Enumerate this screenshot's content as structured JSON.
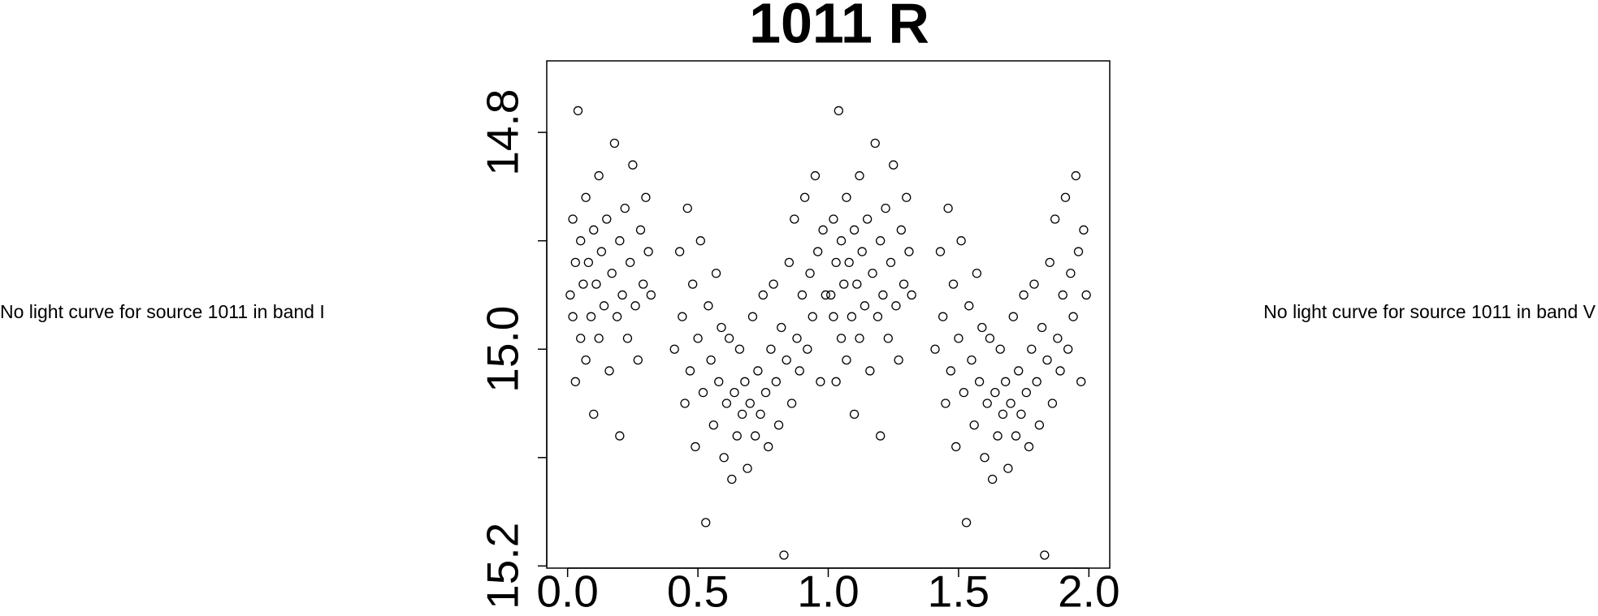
{
  "left_panel": {
    "message": "No light curve for source 1011 in band I"
  },
  "right_panel": {
    "message": "No light curve for source 1011 in band V"
  },
  "chart_data": {
    "type": "scatter",
    "title": "1011 R",
    "color": "#000000",
    "marker": "open-circle",
    "xlim": [
      -0.08,
      2.08
    ],
    "ylim": [
      15.202,
      14.734
    ],
    "xticks": [
      {
        "value": 0,
        "label": "0.0"
      },
      0.5,
      {
        "value": 1,
        "label": "1.0"
      },
      1.5,
      {
        "value": 2,
        "label": "2.0"
      }
    ],
    "yticks": [
      14.8,
      {
        "value": 14.9,
        "label": null
      },
      {
        "value": 15,
        "label": "15.0"
      },
      {
        "value": 15.1,
        "label": null
      },
      15.2
    ],
    "x": [
      0.01,
      0.02,
      0.02,
      0.03,
      0.03,
      0.04,
      0.05,
      0.05,
      0.06,
      0.07,
      0.07,
      0.08,
      0.09,
      0.1,
      0.1,
      0.11,
      0.12,
      0.12,
      0.13,
      0.14,
      0.15,
      0.16,
      0.17,
      0.18,
      0.19,
      0.2,
      0.2,
      0.21,
      0.22,
      0.23,
      0.24,
      0.25,
      0.26,
      0.27,
      0.28,
      0.29,
      0.3,
      0.31,
      0.32,
      0.41,
      0.43,
      0.44,
      0.45,
      0.46,
      0.47,
      0.48,
      0.49,
      0.5,
      0.51,
      0.52,
      0.53,
      0.54,
      0.55,
      0.56,
      0.57,
      0.58,
      0.59,
      0.6,
      0.61,
      0.62,
      0.63,
      0.64,
      0.65,
      0.66,
      0.67,
      0.68,
      0.69,
      0.7,
      0.71,
      0.72,
      0.73,
      0.74,
      0.75,
      0.76,
      0.77,
      0.78,
      0.79,
      0.8,
      0.81,
      0.82,
      0.83,
      0.84,
      0.85,
      0.86,
      0.87,
      0.88,
      0.89,
      0.9,
      0.91,
      0.92,
      0.93,
      0.94,
      0.95,
      0.96,
      0.97,
      0.98,
      0.99,
      1.01,
      1.02,
      1.02,
      1.03,
      1.03,
      1.04,
      1.05,
      1.05,
      1.06,
      1.07,
      1.07,
      1.08,
      1.09,
      1.1,
      1.1,
      1.11,
      1.12,
      1.12,
      1.13,
      1.14,
      1.15,
      1.16,
      1.17,
      1.18,
      1.19,
      1.2,
      1.2,
      1.21,
      1.22,
      1.23,
      1.24,
      1.25,
      1.26,
      1.27,
      1.28,
      1.29,
      1.3,
      1.31,
      1.32,
      1.41,
      1.43,
      1.44,
      1.45,
      1.46,
      1.47,
      1.48,
      1.49,
      1.5,
      1.51,
      1.52,
      1.53,
      1.54,
      1.55,
      1.56,
      1.57,
      1.58,
      1.59,
      1.6,
      1.61,
      1.62,
      1.63,
      1.64,
      1.65,
      1.66,
      1.67,
      1.68,
      1.69,
      1.7,
      1.71,
      1.72,
      1.73,
      1.74,
      1.75,
      1.76,
      1.77,
      1.78,
      1.79,
      1.8,
      1.81,
      1.82,
      1.83,
      1.84,
      1.85,
      1.86,
      1.87,
      1.88,
      1.89,
      1.9,
      1.91,
      1.92,
      1.93,
      1.94,
      1.95,
      1.96,
      1.97,
      1.98,
      1.99
    ],
    "values": [
      14.95,
      14.88,
      14.97,
      14.92,
      15.03,
      14.78,
      14.9,
      14.99,
      14.94,
      14.86,
      15.01,
      14.92,
      14.97,
      14.89,
      15.06,
      14.94,
      14.84,
      14.99,
      14.91,
      14.96,
      14.88,
      15.02,
      14.93,
      14.81,
      14.97,
      14.9,
      15.08,
      14.95,
      14.87,
      14.99,
      14.92,
      14.83,
      14.96,
      15.01,
      14.89,
      14.94,
      14.86,
      14.91,
      14.95,
      15.0,
      14.91,
      14.97,
      15.05,
      14.87,
      15.02,
      14.94,
      15.09,
      14.99,
      14.9,
      15.04,
      15.16,
      14.96,
      15.01,
      15.07,
      14.93,
      15.03,
      14.98,
      15.1,
      15.05,
      14.99,
      15.12,
      15.04,
      15.08,
      15.0,
      15.06,
      15.03,
      15.11,
      15.05,
      14.97,
      15.08,
      15.02,
      15.06,
      14.95,
      15.04,
      15.09,
      15.0,
      14.94,
      15.03,
      15.07,
      14.98,
      15.19,
      15.01,
      14.92,
      15.05,
      14.88,
      14.99,
      15.02,
      14.95,
      14.86,
      15.0,
      14.93,
      14.97,
      14.84,
      14.91,
      15.03,
      14.89,
      14.95,
      14.95,
      14.88,
      14.97,
      14.92,
      15.03,
      14.78,
      14.9,
      14.99,
      14.94,
      14.86,
      15.01,
      14.92,
      14.97,
      14.89,
      15.06,
      14.94,
      14.84,
      14.99,
      14.91,
      14.96,
      14.88,
      15.02,
      14.93,
      14.81,
      14.97,
      14.9,
      15.08,
      14.95,
      14.87,
      14.99,
      14.92,
      14.83,
      14.96,
      15.01,
      14.89,
      14.94,
      14.86,
      14.91,
      14.95,
      15.0,
      14.91,
      14.97,
      15.05,
      14.87,
      15.02,
      14.94,
      15.09,
      14.99,
      14.9,
      15.04,
      15.16,
      14.96,
      15.01,
      15.07,
      14.93,
      15.03,
      14.98,
      15.1,
      15.05,
      14.99,
      15.12,
      15.04,
      15.08,
      15.0,
      15.06,
      15.03,
      15.11,
      15.05,
      14.97,
      15.08,
      15.02,
      15.06,
      14.95,
      15.04,
      15.09,
      15.0,
      14.94,
      15.03,
      15.07,
      14.98,
      15.19,
      15.01,
      14.92,
      15.05,
      14.88,
      14.99,
      15.02,
      14.95,
      14.86,
      15.0,
      14.93,
      14.97,
      14.84,
      14.91,
      15.03,
      14.89,
      14.95
    ]
  }
}
